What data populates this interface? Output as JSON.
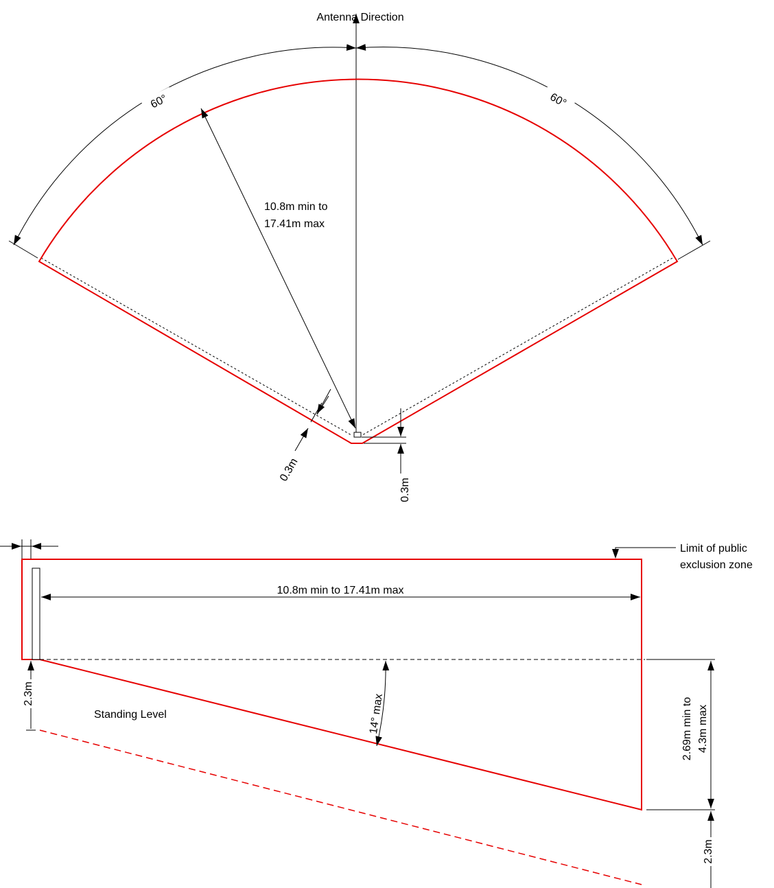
{
  "colors": {
    "zone": "#e60000",
    "dimension": "#000000",
    "background": "#ffffff"
  },
  "plan": {
    "direction_label": "Antenna Direction",
    "left_angle": "60°",
    "right_angle": "60°",
    "radius_line1": "10.8m min to",
    "radius_line2": "17.41m max",
    "offset_left": "0.3m",
    "offset_right": "0.3m"
  },
  "elevation": {
    "callout_line1": "Limit of public",
    "callout_line2": "exclusion zone",
    "length_label": "10.8m min to 17.41m max",
    "tilt_label": "14° max",
    "height_left": "2.3m",
    "standing_level": "Standing Level",
    "height_right_line1": "2.69m min to",
    "height_right_line2": "4.3m max",
    "height_bottom": "2.3m"
  }
}
